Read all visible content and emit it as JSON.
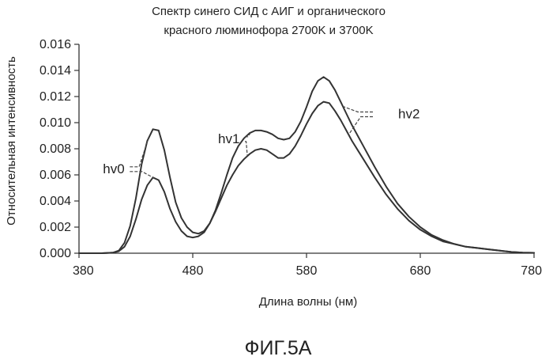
{
  "chart_data": {
    "type": "line",
    "title_lines": [
      "Спектр синего СИД с АИГ и органического",
      "красного люминофора 2700K и 3700K"
    ],
    "xlabel": "Длина волны (нм)",
    "ylabel": "Относительная интенсивность",
    "xlim": [
      380,
      780
    ],
    "ylim": [
      0,
      0.016
    ],
    "x_ticks": [
      "380",
      "480",
      "580",
      "680",
      "780"
    ],
    "y_ticks": [
      "0.000",
      "0.002",
      "0.004",
      "0.006",
      "0.008",
      "0.010",
      "0.012",
      "0.014",
      "0.016"
    ],
    "grid": false,
    "series": [
      {
        "x": [
          380,
          400,
          410,
          415,
          420,
          425,
          430,
          435,
          440,
          445,
          450,
          455,
          460,
          465,
          470,
          475,
          480,
          485,
          490,
          495,
          500,
          505,
          510,
          515,
          520,
          525,
          530,
          535,
          540,
          545,
          550,
          555,
          560,
          565,
          570,
          575,
          580,
          585,
          590,
          595,
          600,
          605,
          610,
          615,
          620,
          625,
          630,
          640,
          650,
          660,
          670,
          680,
          690,
          700,
          710,
          720,
          730,
          740,
          750,
          760,
          770,
          780
        ],
        "values": [
          0,
          0,
          5e-05,
          0.0002,
          0.0008,
          0.0021,
          0.0042,
          0.0068,
          0.0086,
          0.0095,
          0.0094,
          0.0079,
          0.0058,
          0.0039,
          0.0027,
          0.002,
          0.0016,
          0.0015,
          0.0017,
          0.0023,
          0.0033,
          0.0046,
          0.006,
          0.0073,
          0.0082,
          0.0088,
          0.0092,
          0.0094,
          0.0094,
          0.0093,
          0.0091,
          0.0088,
          0.0087,
          0.0088,
          0.0093,
          0.0101,
          0.0112,
          0.0124,
          0.0132,
          0.0135,
          0.0132,
          0.0125,
          0.0116,
          0.0107,
          0.0098,
          0.009,
          0.0082,
          0.0066,
          0.0051,
          0.0038,
          0.0028,
          0.002,
          0.0014,
          0.001,
          0.0007,
          0.0005,
          0.0004,
          0.0003,
          0.0002,
          0.0001,
          5e-05,
          3e-05
        ]
      },
      {
        "x": [
          380,
          400,
          410,
          415,
          420,
          425,
          430,
          435,
          440,
          445,
          450,
          455,
          460,
          465,
          470,
          475,
          480,
          485,
          490,
          495,
          500,
          505,
          510,
          515,
          520,
          525,
          530,
          535,
          540,
          545,
          550,
          555,
          560,
          565,
          570,
          575,
          580,
          585,
          590,
          595,
          600,
          605,
          610,
          615,
          620,
          625,
          630,
          640,
          650,
          660,
          670,
          680,
          690,
          700,
          710,
          720,
          730,
          740,
          750,
          760,
          770,
          780
        ],
        "values": [
          0,
          0,
          4e-05,
          0.00015,
          0.0005,
          0.0013,
          0.0026,
          0.0041,
          0.0052,
          0.0058,
          0.0056,
          0.0047,
          0.0034,
          0.0024,
          0.0017,
          0.0013,
          0.0012,
          0.0013,
          0.0016,
          0.0023,
          0.0032,
          0.0042,
          0.0052,
          0.006,
          0.0067,
          0.0072,
          0.0076,
          0.0079,
          0.008,
          0.0079,
          0.0076,
          0.0073,
          0.0073,
          0.0076,
          0.0082,
          0.009,
          0.0099,
          0.0107,
          0.0113,
          0.0116,
          0.0115,
          0.0109,
          0.0102,
          0.0094,
          0.0086,
          0.0079,
          0.0072,
          0.0058,
          0.0045,
          0.0034,
          0.0025,
          0.0018,
          0.0013,
          0.0009,
          0.0007,
          0.0005,
          0.0004,
          0.0003,
          0.0002,
          0.0001,
          5e-05,
          3e-05
        ]
      }
    ],
    "annotations": [
      {
        "text": "hv0",
        "x": 408,
        "y": 0.0065
      },
      {
        "text": "hv1",
        "x": 505,
        "y": 0.0088
      },
      {
        "text": "hv2",
        "x": 655,
        "y": 0.0107
      }
    ]
  },
  "figure_caption": "ФИГ.5А"
}
